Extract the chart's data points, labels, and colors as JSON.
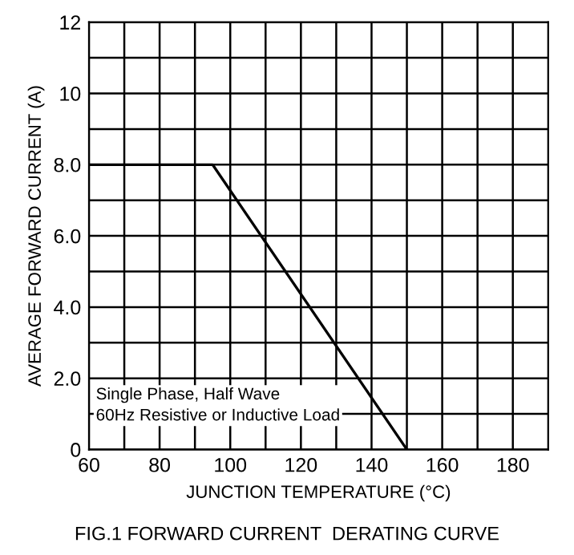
{
  "chart_data": {
    "type": "line",
    "title": "FIG.1 FORWARD CURRENT  DERATING CURVE",
    "xlabel": "JUNCTION TEMPERATURE (°C)",
    "ylabel": "AVERAGE FORWARD CURRENT (A)",
    "x": [
      60,
      95,
      150
    ],
    "series": [
      {
        "color": "#000000",
        "values": [
          8.0,
          8.0,
          0
        ]
      }
    ],
    "xlim": [
      60,
      190
    ],
    "xticks": [
      60,
      {
        "value": 70,
        "label": null
      },
      80,
      {
        "value": 90,
        "label": null
      },
      100,
      {
        "value": 110,
        "label": null
      },
      120,
      {
        "value": 130,
        "label": null
      },
      140,
      {
        "value": 150,
        "label": null
      },
      160,
      {
        "value": 170,
        "label": null
      },
      180
    ],
    "ylim": [
      0,
      12
    ],
    "yticks": [
      0,
      {
        "value": 1,
        "label": null
      },
      "2.0",
      {
        "value": 3,
        "label": null
      },
      "4.0",
      {
        "value": 5,
        "label": null
      },
      "6.0",
      {
        "value": 7,
        "label": null
      },
      "8.0",
      {
        "value": 9,
        "label": null
      },
      10,
      {
        "value": 11,
        "label": null
      },
      12
    ],
    "annotations": [
      "Single Phase, Half Wave\n60Hz Resistive or Inductive Load"
    ],
    "grid": true,
    "marker": "none",
    "line_style": "solid"
  }
}
